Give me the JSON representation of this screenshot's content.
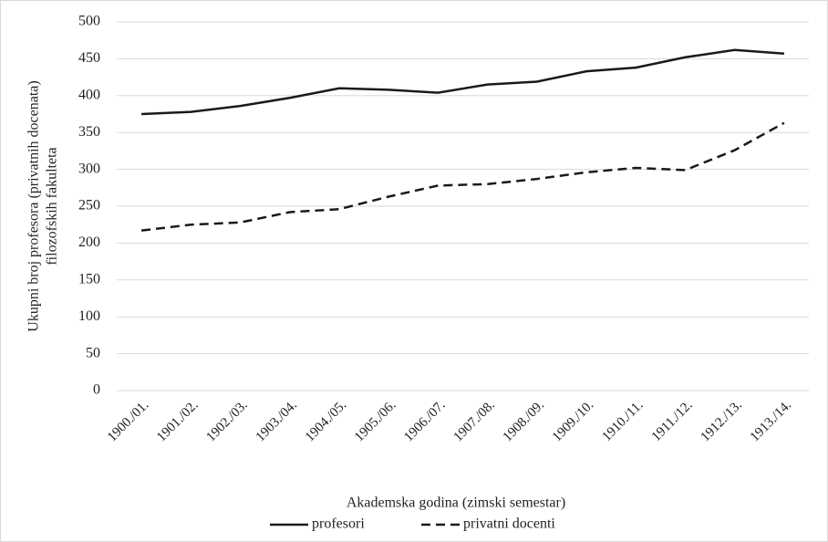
{
  "chart_data": {
    "type": "line",
    "xlabel": "Akademska godina (zimski semestar)",
    "ylabel": [
      "Ukupni broj profesora (privatnih docenata)",
      "filozofskih fakulteta"
    ],
    "categories": [
      "1900./01.",
      "1901./02.",
      "1902./03.",
      "1903./04.",
      "1904./05.",
      "1905./06.",
      "1906./07.",
      "1907./08.",
      "1908./09.",
      "1909./10.",
      "1910./11.",
      "1911./12.",
      "1912./13.",
      "1913./14."
    ],
    "series": [
      {
        "name": "profesori",
        "color": "#1a1a1a",
        "dash": "solid",
        "values": [
          375,
          378,
          386,
          397,
          410,
          408,
          404,
          415,
          419,
          433,
          438,
          452,
          462,
          457
        ]
      },
      {
        "name": "privatni docenti",
        "color": "#1a1a1a",
        "dash": "dashed",
        "values": [
          217,
          225,
          228,
          242,
          246,
          263,
          278,
          280,
          287,
          296,
          302,
          299,
          326,
          363
        ]
      }
    ],
    "ylim": [
      0,
      500
    ],
    "yticks": [
      0,
      50,
      100,
      150,
      200,
      250,
      300,
      350,
      400,
      450,
      500
    ],
    "grid": true,
    "legend": "bottom"
  }
}
